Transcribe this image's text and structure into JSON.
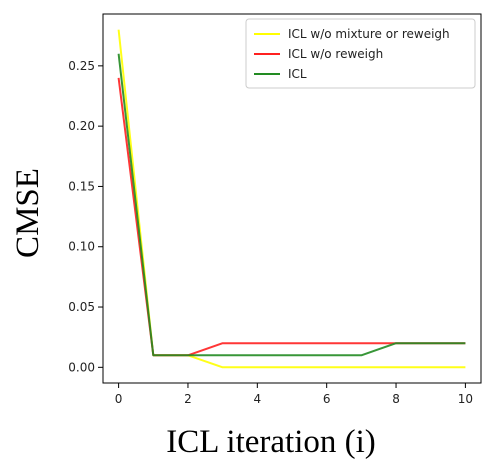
{
  "chart_data": {
    "type": "line",
    "title": "",
    "xlabel": "ICL iteration (i)",
    "ylabel": "CMSE",
    "xlim": [
      -0.45,
      10.45
    ],
    "ylim": [
      -0.013,
      0.293
    ],
    "x_ticks": [
      0,
      2,
      4,
      6,
      8,
      10
    ],
    "x_tick_labels": [
      "0",
      "2",
      "4",
      "6",
      "8",
      "10"
    ],
    "y_ticks": [
      0.0,
      0.05,
      0.1,
      0.15,
      0.2,
      0.25
    ],
    "y_tick_labels": [
      "0.00",
      "0.05",
      "0.10",
      "0.15",
      "0.20",
      "0.25"
    ],
    "grid": false,
    "legend_position": "top-right",
    "x": [
      0,
      1,
      2,
      3,
      4,
      5,
      6,
      7,
      8,
      9,
      10
    ],
    "series": [
      {
        "name": "ICL w/o mixture or reweigh",
        "color": "#ffff00",
        "values": [
          0.28,
          0.01,
          0.01,
          0.0,
          0.0,
          0.0,
          0.0,
          0.0,
          0.0,
          0.0,
          0.0
        ]
      },
      {
        "name": "ICL w/o reweigh",
        "color": "#ff2020",
        "values": [
          0.24,
          0.01,
          0.01,
          0.02,
          0.02,
          0.02,
          0.02,
          0.02,
          0.02,
          0.02,
          0.02
        ]
      },
      {
        "name": "ICL",
        "color": "#228b22",
        "values": [
          0.26,
          0.01,
          0.01,
          0.01,
          0.01,
          0.01,
          0.01,
          0.01,
          0.02,
          0.02,
          0.02
        ]
      }
    ]
  }
}
